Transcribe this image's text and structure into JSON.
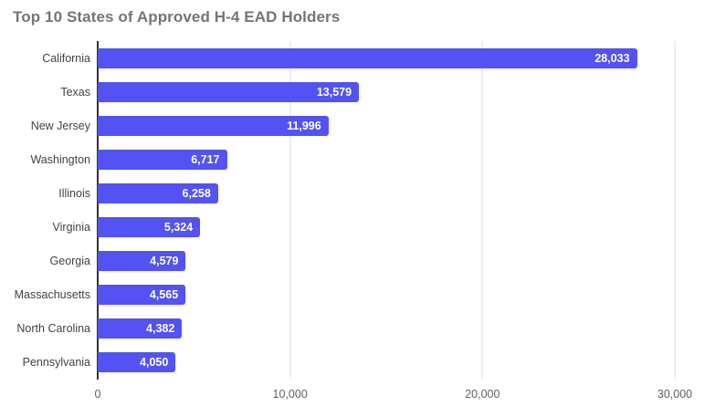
{
  "title": "Top 10 States of Approved H-4 EAD Holders",
  "colors": {
    "bar": "#5352f2",
    "title_text": "#757575",
    "category_text": "#424242",
    "tick_text": "#616161",
    "gridline": "#dcdcdc",
    "axis_line": "#333333",
    "value_text": "#ffffff",
    "background": "#ffffff"
  },
  "chart_data": {
    "type": "bar",
    "orientation": "horizontal",
    "title": "Top 10 States of Approved H-4 EAD Holders",
    "categories": [
      "California",
      "Texas",
      "New Jersey",
      "Washington",
      "Illinois",
      "Virginia",
      "Georgia",
      "Massachusetts",
      "North Carolina",
      "Pennsylvania"
    ],
    "values": [
      28033,
      13579,
      11996,
      6717,
      6258,
      5324,
      4579,
      4565,
      4382,
      4050
    ],
    "value_labels": [
      "28,033",
      "13,579",
      "11,996",
      "6,717",
      "6,258",
      "5,324",
      "4,579",
      "4,565",
      "4,382",
      "4,050"
    ],
    "xlabel": "",
    "ylabel": "",
    "xlim": [
      0,
      30000
    ],
    "x_ticks": [
      0,
      10000,
      20000,
      30000
    ],
    "x_tick_labels": [
      "0",
      "10,000",
      "20,000",
      "30,000"
    ],
    "grid": "vertical",
    "legend": "none",
    "value_label_position": "inside-end"
  }
}
